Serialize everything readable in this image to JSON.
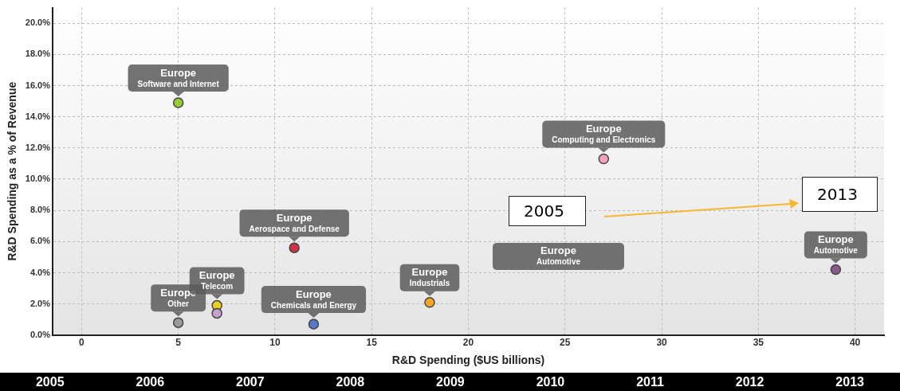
{
  "chart_data": {
    "type": "scatter",
    "xlabel": "R&D Spending ($US billions)",
    "ylabel": "R&D Spending as a % of Revenue",
    "xlim": [
      -1.5,
      41.5
    ],
    "xticks": [
      0,
      5,
      10,
      15,
      20,
      25,
      30,
      35,
      40
    ],
    "ylim": [
      0,
      21
    ],
    "yticks": [
      {
        "value": 0,
        "label": "0.0%"
      },
      {
        "value": 2,
        "label": "2.0%"
      },
      {
        "value": 4,
        "label": "4.0%"
      },
      {
        "value": 6,
        "label": "6.0%"
      },
      {
        "value": 8,
        "label": "8.0%"
      },
      {
        "value": 10,
        "label": "10.0%"
      },
      {
        "value": 12,
        "label": "12.0%"
      },
      {
        "value": 14,
        "label": "14.0%"
      },
      {
        "value": 16,
        "label": "16.0%"
      },
      {
        "value": 18,
        "label": "18.0%"
      },
      {
        "value": 20,
        "label": "20.0%"
      }
    ],
    "grid": true,
    "legend": false,
    "marker": "circle",
    "series": [
      {
        "color": "#99cc33",
        "x": [
          5
        ],
        "values": [
          14.9
        ]
      },
      {
        "color": "#cc3344",
        "x": [
          11
        ],
        "values": [
          5.6
        ]
      },
      {
        "color": "#f4a0c0",
        "x": [
          27
        ],
        "values": [
          11.3
        ]
      },
      {
        "color": "#999999",
        "x": [
          5
        ],
        "values": [
          0.8
        ]
      },
      {
        "color": "#c8a0d0",
        "x": [
          7
        ],
        "values": [
          1.4
        ]
      },
      {
        "color": "#e8d020",
        "x": [
          7
        ],
        "values": [
          1.9
        ]
      },
      {
        "color": "#5577cc",
        "x": [
          12
        ],
        "values": [
          0.7
        ]
      },
      {
        "color": "#f5a623",
        "x": [
          18
        ],
        "values": [
          2.1
        ]
      },
      {
        "color": "#8a5a8a",
        "x": [
          39
        ],
        "values": [
          4.2
        ]
      }
    ],
    "annotations": [
      {
        "text": "Europe\nSoftware and Internet",
        "x": 5,
        "y": 14.9
      },
      {
        "text": "Europe\nAerospace and Defense",
        "x": 11,
        "y": 5.6
      },
      {
        "text": "Europe\nComputing and Electronics",
        "x": 27,
        "y": 11.3
      },
      {
        "text": "Europe\nOther",
        "x": 5,
        "y": 0.8
      },
      {
        "text": "Europe\nChemicals and Energy",
        "x": 12,
        "y": 0.7
      },
      {
        "text": "Europe\nIndustrials",
        "x": 18,
        "y": 2.1
      },
      "Europe\nAutomotive",
      {
        "text": "Europe\nTelecom",
        "x": 7,
        "y": 1.9
      },
      {
        "text": "Europe\nAutomotive",
        "x": 39,
        "y": 4.2
      },
      "2005",
      "2013",
      "2005",
      "2006",
      "2007",
      "2008",
      "2009",
      "2010",
      "2011",
      "2012",
      "2013"
    ]
  }
}
